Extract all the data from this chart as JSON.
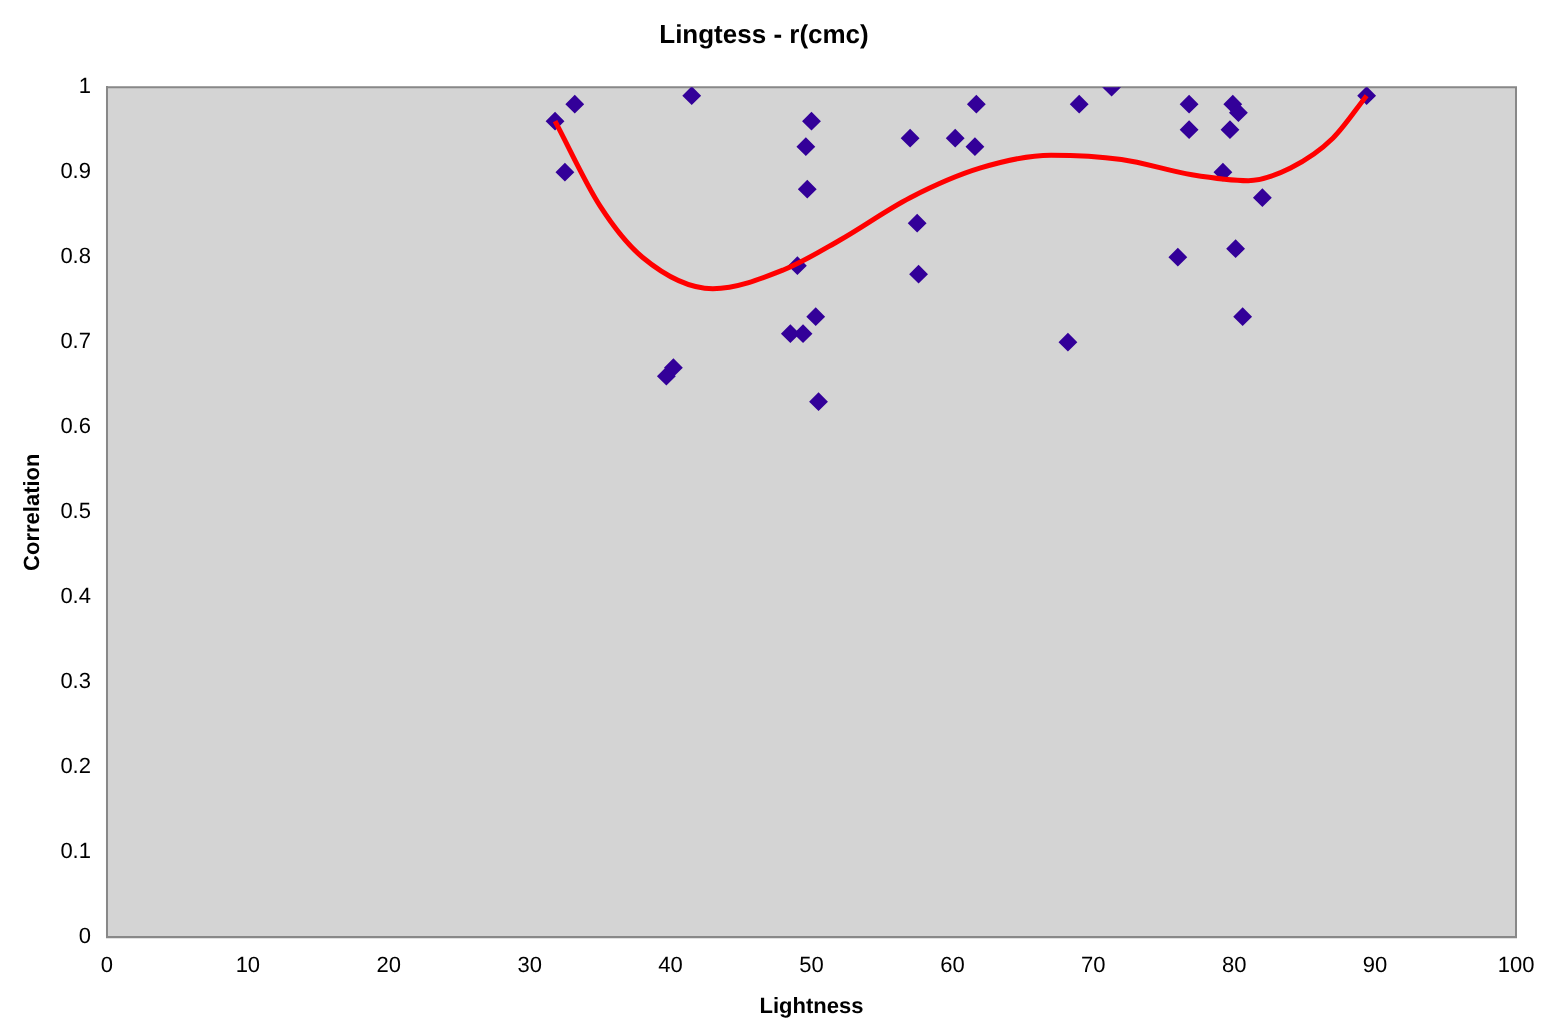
{
  "chart_data": {
    "type": "scatter",
    "title": "Lingtess - r(cmc)",
    "xlabel": "Lightness",
    "ylabel": "Correlation",
    "xlim": [
      0,
      100
    ],
    "xticks": [
      0,
      10,
      20,
      30,
      40,
      50,
      60,
      70,
      80,
      90,
      100
    ],
    "ylim": [
      0,
      1
    ],
    "yticks": [
      0,
      0.1,
      0.2,
      0.3,
      0.4,
      0.5,
      0.6,
      0.7,
      0.8,
      0.9,
      1
    ],
    "grid": false,
    "legend": false,
    "series": [
      {
        "type": "scatter",
        "color": "#330099",
        "marker": "diamond",
        "x": [
          31.8,
          32.5,
          33.2,
          39.7,
          40.2,
          41.5,
          48.5,
          49,
          49.4,
          49.6,
          49.7,
          50,
          50.3,
          50.5,
          57,
          57.5,
          57.6,
          60.2,
          61.6,
          61.7,
          68.2,
          69,
          71.3,
          76,
          76.8,
          76.8,
          79.2,
          79.7,
          79.9,
          80.1,
          80.3,
          80.6,
          82,
          89.4
        ],
        "values": [
          0.96,
          0.9,
          0.98,
          0.66,
          0.67,
          0.99,
          0.71,
          0.79,
          0.71,
          0.93,
          0.88,
          0.96,
          0.73,
          0.63,
          0.94,
          0.84,
          0.78,
          0.94,
          0.93,
          0.98,
          0.7,
          0.98,
          1.0,
          0.8,
          0.98,
          0.95,
          0.9,
          0.95,
          0.98,
          0.81,
          0.97,
          0.73,
          0.87,
          0.99
        ]
      },
      {
        "type": "line",
        "color": "#ff0000",
        "marker": "none",
        "line_style": "solid",
        "x": [
          31.8,
          35,
          38,
          43,
          48,
          52,
          57,
          62,
          67,
          72,
          77,
          81,
          84,
          87,
          89.4
        ],
        "values": [
          0.96,
          0.86,
          0.8,
          0.763,
          0.785,
          0.82,
          0.87,
          0.905,
          0.92,
          0.915,
          0.897,
          0.89,
          0.905,
          0.94,
          0.99
        ]
      }
    ]
  }
}
